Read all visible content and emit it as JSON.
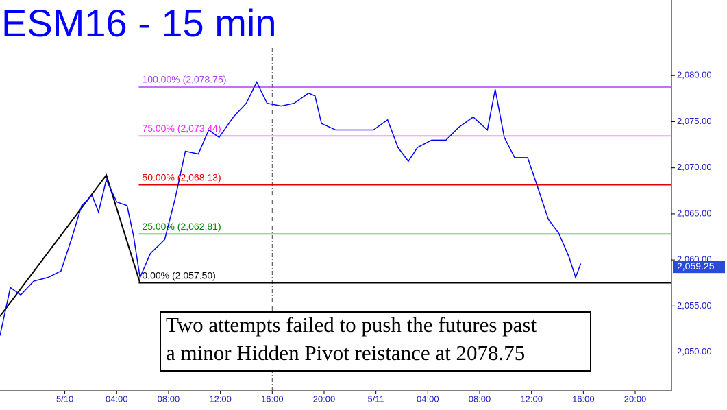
{
  "chart_data": {
    "type": "line",
    "title": "ESM16 - 15 min",
    "x": [
      -5.0,
      -4.2,
      -3.4,
      -2.4,
      -1.3,
      -0.3,
      0.5,
      1.3,
      2.1,
      2.6,
      3.2,
      4.0,
      4.8,
      5.3,
      5.8,
      6.6,
      7.7,
      8.5,
      9.3,
      10.3,
      11.1,
      11.9,
      13.0,
      14.0,
      14.8,
      15.6,
      16.7,
      17.7,
      18.8,
      19.3,
      19.8,
      20.9,
      22.5,
      23.8,
      24.9,
      25.7,
      26.5,
      27.2,
      28.3,
      29.4,
      30.4,
      31.5,
      32.6,
      33.2,
      33.9,
      34.7,
      35.7,
      36.5,
      37.3,
      38.1,
      38.9,
      39.4,
      39.8
    ],
    "series": [
      {
        "color": "#0000ff",
        "values": [
          2051.8,
          2057.0,
          2056.2,
          2057.7,
          2058.1,
          2058.8,
          2062.2,
          2065.9,
          2067.0,
          2065.2,
          2068.7,
          2066.3,
          2065.9,
          2062.6,
          2058.1,
          2060.7,
          2062.2,
          2066.6,
          2071.8,
          2071.5,
          2074.1,
          2073.3,
          2075.5,
          2077.0,
          2079.3,
          2077.0,
          2076.7,
          2077.0,
          2078.1,
          2077.8,
          2074.8,
          2074.1,
          2074.1,
          2074.1,
          2075.2,
          2072.2,
          2070.7,
          2072.2,
          2073.0,
          2073.0,
          2074.4,
          2075.5,
          2074.1,
          2078.5,
          2073.3,
          2071.1,
          2071.1,
          2067.8,
          2064.4,
          2062.9,
          2060.3,
          2058.1,
          2059.6
        ]
      }
    ],
    "zigzag": {
      "color": "#000000",
      "x": [
        -5.0,
        3.2,
        5.8
      ],
      "values": [
        2053.9,
        2069.2,
        2057.5
      ]
    },
    "levels": [
      {
        "label": "100.00% (2,078.75)",
        "value": 2078.75,
        "color": "#b040f0"
      },
      {
        "label": "75.00% (2,073.44)",
        "value": 2073.44,
        "color": "#ff20ff"
      },
      {
        "label": "50.00% (2,068.13)",
        "value": 2068.13,
        "color": "#e00000"
      },
      {
        "label": "25.00% (2,062.81)",
        "value": 2062.81,
        "color": "#008000"
      },
      {
        "label": "0.00% (2,057.50)",
        "value": 2057.5,
        "color": "#000000"
      }
    ],
    "levels_start": 5.7,
    "marker_x": 16,
    "last_price": {
      "value": 2059.25,
      "label": "2,059.25"
    },
    "annotation": [
      "Two attempts failed to push the futures past",
      "a minor Hidden Pivot reistance at 2078.75"
    ],
    "xlim": [
      -5.0,
      46.8
    ],
    "ylim": [
      2045.8,
      2088.2
    ],
    "xticks": [
      {
        "value": 0,
        "label": "5/10"
      },
      {
        "value": 4,
        "label": "04:00"
      },
      {
        "value": 8,
        "label": "08:00"
      },
      {
        "value": 12,
        "label": "12:00"
      },
      {
        "value": 16,
        "label": "16:00"
      },
      {
        "value": 20,
        "label": "20:00"
      },
      {
        "value": 24,
        "label": "5/11"
      },
      {
        "value": 28,
        "label": "04:00"
      },
      {
        "value": 32,
        "label": "08:00"
      },
      {
        "value": 36,
        "label": "12:00"
      },
      {
        "value": 40,
        "label": "16:00"
      },
      {
        "value": 44,
        "label": "20:00"
      }
    ],
    "yticks": [
      {
        "value": 2050,
        "label": "2,050.00"
      },
      {
        "value": 2055,
        "label": "2,055.00"
      },
      {
        "value": 2060,
        "label": "2,060.00"
      },
      {
        "value": 2065,
        "label": "2,065.00"
      },
      {
        "value": 2070,
        "label": "2,070.00"
      },
      {
        "value": 2075,
        "label": "2,075.00"
      },
      {
        "value": 2080,
        "label": "2,080.00"
      }
    ]
  }
}
